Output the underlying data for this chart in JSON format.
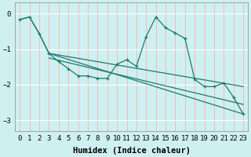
{
  "xlabel": "Humidex (Indice chaleur)",
  "xlim": [
    -0.5,
    23.5
  ],
  "ylim": [
    -3.3,
    0.3
  ],
  "yticks": [
    0,
    -1,
    -2,
    -3
  ],
  "xticks": [
    0,
    1,
    2,
    3,
    4,
    5,
    6,
    7,
    8,
    9,
    10,
    11,
    12,
    13,
    14,
    15,
    16,
    17,
    18,
    19,
    20,
    21,
    22,
    23
  ],
  "bg_color": "#cff0f0",
  "line_color": "#1a7a6e",
  "vgrid_color": "#f5b8b8",
  "hgrid_color": "#ffffff",
  "line1_x": [
    0,
    1,
    2,
    3,
    4,
    5,
    6,
    7,
    8,
    9,
    10,
    11,
    12,
    13,
    14,
    15,
    16,
    17,
    18,
    19,
    20,
    21,
    22,
    23
  ],
  "line1_y": [
    -0.17,
    -0.1,
    -0.57,
    -1.12,
    -1.35,
    -1.55,
    -1.75,
    -1.75,
    -1.82,
    -1.82,
    -1.42,
    -1.3,
    -1.48,
    -0.65,
    -0.1,
    -0.4,
    -0.55,
    -0.7,
    -1.85,
    -2.05,
    -2.05,
    -1.95,
    -2.35,
    -2.82
  ],
  "line2_x": [
    0,
    1,
    2,
    3,
    23
  ],
  "line2_y": [
    -0.17,
    -0.1,
    -0.57,
    -1.12,
    -2.82
  ],
  "line3_x": [
    3,
    23
  ],
  "line3_y": [
    -1.12,
    -2.05
  ],
  "line4_x": [
    3,
    23
  ],
  "line4_y": [
    -1.25,
    -2.55
  ],
  "font_family": "monospace",
  "label_fontsize": 7.5,
  "tick_fontsize": 6.5
}
